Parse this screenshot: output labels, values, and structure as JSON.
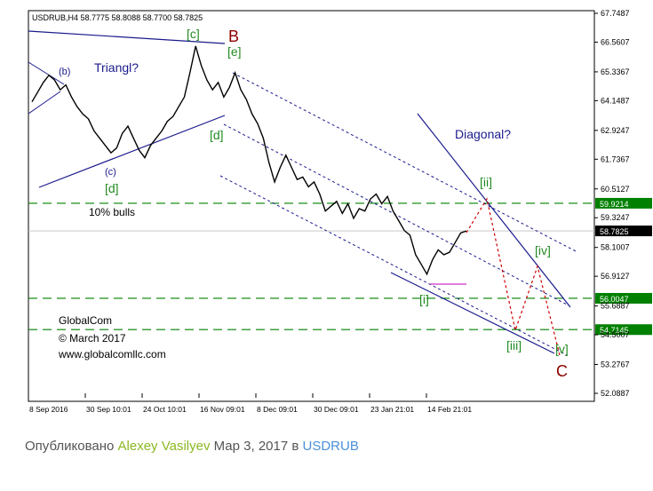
{
  "chart_data": {
    "type": "candlestick-line",
    "title": "USDRUB,H4  58.7775 58.8088 58.7700 58.7825",
    "y_ticks": [
      "67.7487",
      "66.5607",
      "65.3367",
      "64.1487",
      "62.9247",
      "61.7367",
      "60.5127",
      "59.3247",
      "58.1007",
      "56.9127",
      "55.6887",
      "54.5007",
      "53.2767",
      "52.0887"
    ],
    "x_ticks": [
      "8 Sep 2016",
      "30 Sep 10:01",
      "24 Oct 10:01",
      "16 Nov 09:01",
      "8 Dec 09:01",
      "30 Dec 09:01",
      "23 Jan 21:01",
      "14 Feb 21:01"
    ],
    "ylim": [
      52.0887,
      67.7487
    ],
    "price_levels": [
      {
        "label": "59.9214",
        "value": 59.9214,
        "color": "#008000",
        "style": "dashed"
      },
      {
        "label": "58.7825",
        "value": 58.7825,
        "color": "#c0c0c0",
        "style": "solid",
        "current": true
      },
      {
        "label": "56.0047",
        "value": 56.0047,
        "color": "#008000",
        "style": "dashed"
      },
      {
        "label": "54.7145",
        "value": 54.7145,
        "color": "#008000",
        "style": "dashed"
      }
    ],
    "price_series": [
      [
        0,
        64.1
      ],
      [
        2,
        64.5
      ],
      [
        4,
        64.9
      ],
      [
        6,
        65.2
      ],
      [
        8,
        65.0
      ],
      [
        10,
        64.6
      ],
      [
        12,
        64.8
      ],
      [
        14,
        64.3
      ],
      [
        16,
        63.9
      ],
      [
        18,
        63.6
      ],
      [
        20,
        63.4
      ],
      [
        22,
        62.9
      ],
      [
        24,
        62.6
      ],
      [
        26,
        62.3
      ],
      [
        28,
        62.0
      ],
      [
        30,
        62.2
      ],
      [
        32,
        62.8
      ],
      [
        34,
        63.1
      ],
      [
        36,
        62.6
      ],
      [
        38,
        62.1
      ],
      [
        40,
        61.8
      ],
      [
        42,
        62.3
      ],
      [
        44,
        62.6
      ],
      [
        46,
        62.9
      ],
      [
        48,
        63.3
      ],
      [
        50,
        63.5
      ],
      [
        52,
        63.9
      ],
      [
        54,
        64.3
      ],
      [
        56,
        65.3
      ],
      [
        58,
        66.4
      ],
      [
        60,
        65.6
      ],
      [
        62,
        65.0
      ],
      [
        64,
        64.6
      ],
      [
        66,
        64.9
      ],
      [
        68,
        64.3
      ],
      [
        70,
        64.7
      ],
      [
        72,
        65.3
      ],
      [
        74,
        64.6
      ],
      [
        76,
        64.2
      ],
      [
        78,
        63.6
      ],
      [
        80,
        63.2
      ],
      [
        82,
        62.6
      ],
      [
        84,
        61.6
      ],
      [
        86,
        60.8
      ],
      [
        88,
        61.4
      ],
      [
        90,
        61.9
      ],
      [
        92,
        61.4
      ],
      [
        94,
        60.9
      ],
      [
        96,
        61.0
      ],
      [
        98,
        60.6
      ],
      [
        100,
        60.8
      ],
      [
        102,
        60.3
      ],
      [
        104,
        59.6
      ],
      [
        106,
        59.8
      ],
      [
        108,
        60.0
      ],
      [
        110,
        59.5
      ],
      [
        112,
        59.9
      ],
      [
        114,
        59.3
      ],
      [
        116,
        59.7
      ],
      [
        118,
        59.6
      ],
      [
        120,
        60.1
      ],
      [
        122,
        60.3
      ],
      [
        124,
        59.9
      ],
      [
        126,
        60.2
      ],
      [
        128,
        59.6
      ],
      [
        130,
        59.2
      ],
      [
        132,
        58.8
      ],
      [
        134,
        58.6
      ],
      [
        136,
        57.8
      ],
      [
        138,
        57.4
      ],
      [
        140,
        57.0
      ],
      [
        142,
        57.6
      ],
      [
        144,
        58.0
      ],
      [
        146,
        57.8
      ],
      [
        148,
        57.9
      ],
      [
        150,
        58.3
      ],
      [
        152,
        58.7
      ],
      [
        154,
        58.78
      ]
    ],
    "series": [
      {
        "name": "channel-upper",
        "type": "line",
        "style": "dotted",
        "color": "#1a1a8c"
      },
      {
        "name": "channel-middle",
        "type": "line",
        "style": "dotted",
        "color": "#1a1a8c"
      },
      {
        "name": "channel-lower",
        "type": "line",
        "style": "dotted",
        "color": "#1a1a8c"
      },
      {
        "name": "projection",
        "type": "line",
        "style": "dotted",
        "color": "#cc0000"
      }
    ],
    "annotations": [
      {
        "text": "(b)",
        "color": "#1a1a8c"
      },
      {
        "text": "Triangl?",
        "color": "#1a1a8c"
      },
      {
        "text": "(c)",
        "color": "#1a1a8c"
      },
      {
        "text": "[d]",
        "color": "#228b22"
      },
      {
        "text": "[c]",
        "color": "#228b22"
      },
      {
        "text": "B",
        "color": "#8b0000"
      },
      {
        "text": "[e]",
        "color": "#228b22"
      },
      {
        "text": "[d]",
        "color": "#228b22"
      },
      {
        "text": "Diagonal?",
        "color": "#1a1a8c"
      },
      {
        "text": "[ii]",
        "color": "#228b22"
      },
      {
        "text": "10% bulls",
        "color": "#000000"
      },
      {
        "text": "[iv]",
        "color": "#228b22"
      },
      {
        "text": "[i]",
        "color": "#228b22"
      },
      {
        "text": "[iii]",
        "color": "#228b22"
      },
      {
        "text": "[v]",
        "color": "#228b22"
      },
      {
        "text": "C",
        "color": "#8b0000"
      }
    ],
    "watermark": [
      "GlobalCom",
      "© March 2017",
      "www.globalcomllc.com"
    ],
    "grid": false
  },
  "caption": {
    "prefix": "Опубликовано",
    "author": "Alexey Vasilyev",
    "middle": "Мар 3, 2017 в",
    "symbol": "USDRUB"
  },
  "colors": {
    "accent_green": "#8bb821",
    "symbol_blue": "#4a90d9",
    "level_green": "#008000",
    "wave_navy": "#1a1a8c",
    "wave_red": "#8b0000"
  }
}
